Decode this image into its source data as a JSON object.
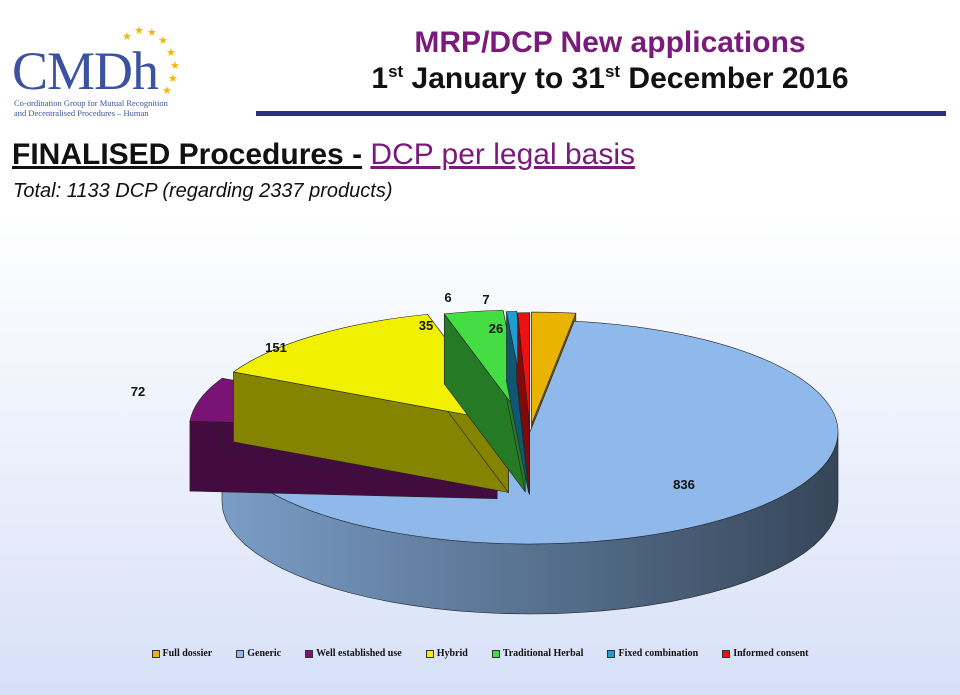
{
  "logo": {
    "name": "CMDh",
    "subtitle_line1": "Co-ordination Group for Mutual Recognition",
    "subtitle_line2": "and Decentralised Procedures – Human"
  },
  "header": {
    "title_line1": "MRP/DCP New applications",
    "title_line2_part1": "1",
    "title_line2_sup1": "st",
    "title_line2_part2": " January to 31",
    "title_line2_sup2": "st",
    "title_line2_part3": " December 2016"
  },
  "heading": {
    "main": "FINALISED Procedures -",
    "sub": "DCP per legal basis"
  },
  "total_text": "Total: 1133 DCP (regarding 2337 products)",
  "chart_data": {
    "type": "pie",
    "categories": [
      "Full dossier",
      "Generic",
      "Well established use",
      "Hybrid",
      "Traditional Herbal",
      "Fixed combination",
      "Informed consent"
    ],
    "values": [
      26,
      836,
      72,
      151,
      35,
      6,
      7
    ],
    "colors": [
      "#e8b400",
      "#8fb9ea",
      "#7a1474",
      "#f0f000",
      "#44dd44",
      "#1e9ed0",
      "#ee1111"
    ],
    "legend_position": "bottom",
    "exploded": true,
    "three_d": true
  }
}
